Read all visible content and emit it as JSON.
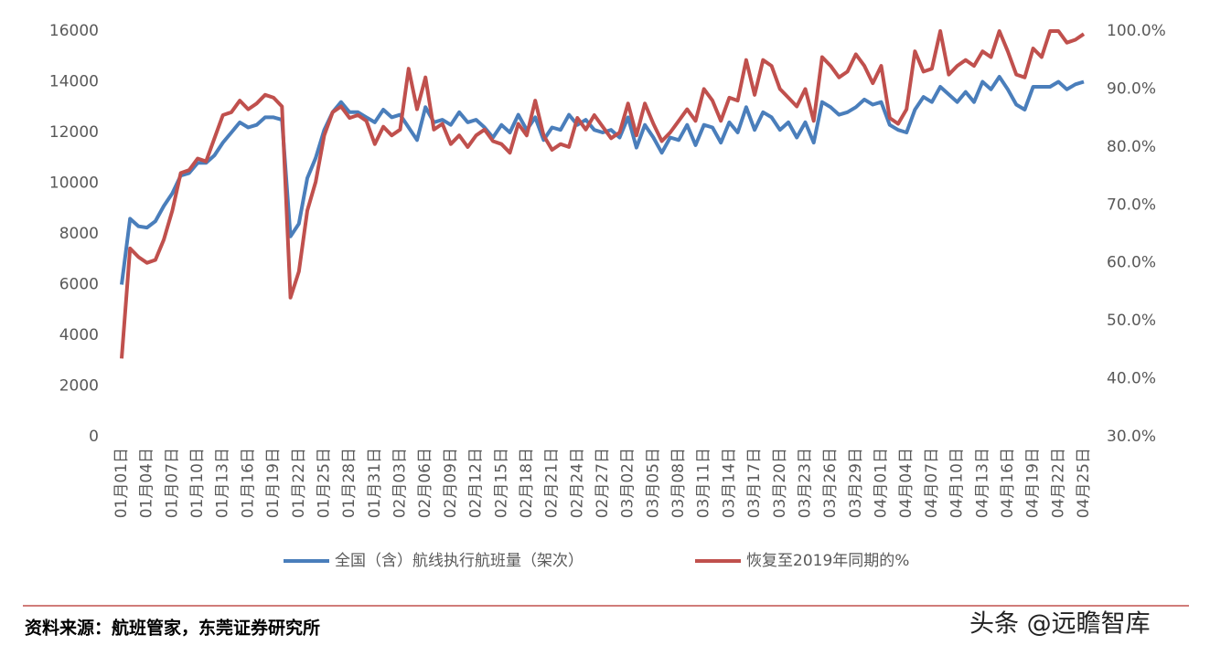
{
  "chart_data": {
    "type": "line",
    "categories": [
      "01月01日",
      null,
      null,
      "01月04日",
      null,
      null,
      "01月07日",
      null,
      null,
      "01月10日",
      null,
      null,
      "01月13日",
      null,
      null,
      "01月16日",
      null,
      null,
      "01月19日",
      null,
      null,
      "01月22日",
      null,
      null,
      "01月25日",
      null,
      null,
      "01月28日",
      null,
      null,
      "01月31日",
      null,
      null,
      "02月03日",
      null,
      null,
      "02月06日",
      null,
      null,
      "02月09日",
      null,
      null,
      "02月12日",
      null,
      null,
      "02月15日",
      null,
      null,
      "02月18日",
      null,
      null,
      "02月21日",
      null,
      null,
      "02月24日",
      null,
      null,
      "02月27日",
      null,
      null,
      "03月02日",
      null,
      null,
      "03月05日",
      null,
      null,
      "03月08日",
      null,
      null,
      "03月11日",
      null,
      null,
      "03月14日",
      null,
      null,
      "03月17日",
      null,
      null,
      "03月20日",
      null,
      null,
      "03月23日",
      null,
      null,
      "03月26日",
      null,
      null,
      "03月29日",
      null,
      null,
      "04月01日",
      null,
      null,
      "04月04日",
      null,
      null,
      "04月07日",
      null,
      null,
      "04月10日",
      null,
      null,
      "04月13日",
      null,
      null,
      "04月16日",
      null,
      null,
      "04月19日",
      null,
      null,
      "04月22日",
      null,
      null,
      "04月25日"
    ],
    "series": [
      {
        "name": "全国（含）航线执行航班量（架次）",
        "color": "#4a7ebb",
        "values": [
          6000,
          8600,
          8300,
          8250,
          8500,
          9100,
          9600,
          10300,
          10400,
          10800,
          10800,
          11100,
          11600,
          12000,
          12400,
          12200,
          12300,
          12600,
          12600,
          12500,
          7900,
          8400,
          10200,
          11000,
          12100,
          12800,
          13200,
          12800,
          12800,
          12600,
          12400,
          12900,
          12600,
          12700,
          12200,
          11700,
          13000,
          12400,
          12500,
          12300,
          12800,
          12400,
          12500,
          12200,
          11800,
          12300,
          12000,
          12700,
          12100,
          12600,
          11700,
          12200,
          12100,
          12700,
          12300,
          12500,
          12100,
          12000,
          12100,
          11800,
          12600,
          11400,
          12300,
          11800,
          11200,
          11800,
          11700,
          12300,
          11500,
          12300,
          12200,
          11600,
          12400,
          12000,
          13000,
          12100,
          12800,
          12600,
          12100,
          12400,
          11800,
          12400,
          11600,
          13200,
          13000,
          12700,
          12800,
          13000,
          13300,
          13100,
          13200,
          12300,
          12100,
          12000,
          12900,
          13400,
          13200,
          13800,
          13500,
          13200,
          13600,
          13200,
          14000,
          13700,
          14200,
          13700,
          13100,
          12900,
          13800,
          13800,
          13800,
          14000,
          13700,
          13900,
          14000
        ]
      },
      {
        "name": "恢复至2019年同期的%",
        "color": "#c0504d",
        "axis": "y2",
        "values": [
          43.5,
          62.5,
          61,
          60,
          60.5,
          64,
          69,
          75.5,
          76,
          78,
          77.5,
          81.5,
          85.5,
          86,
          88,
          86.5,
          87.5,
          89,
          88.5,
          87,
          54,
          58.5,
          69,
          74,
          82,
          86,
          87,
          85,
          85.5,
          84.5,
          80.5,
          83.5,
          82,
          83,
          93.5,
          86.5,
          92,
          83,
          84,
          80.5,
          82,
          80,
          82,
          83,
          81,
          80.5,
          79,
          84,
          82,
          88,
          82,
          79.5,
          80.5,
          80,
          85,
          83,
          85.5,
          83.5,
          81.5,
          82.5,
          87.5,
          82,
          87.5,
          84,
          81,
          82.5,
          84.5,
          86.5,
          84.5,
          90,
          88,
          84.5,
          88.5,
          88,
          95,
          89,
          95,
          94,
          90,
          88.5,
          87,
          90,
          84.5,
          95.5,
          94,
          92,
          93,
          96,
          94,
          91,
          94,
          85,
          84,
          86.5,
          96.5,
          93,
          93.5,
          100,
          92.5,
          94,
          95,
          94,
          96.5,
          95.5,
          100,
          96.5,
          92.5,
          92,
          97,
          95.5,
          100,
          100,
          98,
          98.5,
          99.5
        ]
      }
    ],
    "ylim": [
      0,
      16000
    ],
    "yticks": [
      0,
      2000,
      4000,
      6000,
      8000,
      10000,
      12000,
      14000,
      16000
    ],
    "y2lim": [
      30,
      100
    ],
    "y2ticks": [
      {
        "value": 30,
        "label": "30.0%"
      },
      {
        "value": 40,
        "label": "40.0%"
      },
      {
        "value": 50,
        "label": "50.0%"
      },
      {
        "value": 60,
        "label": "60.0%"
      },
      {
        "value": 70,
        "label": "70.0%"
      },
      {
        "value": 80,
        "label": "80.0%"
      },
      {
        "value": 90,
        "label": "90.0%"
      },
      {
        "value": 100,
        "label": "100.0%"
      }
    ],
    "grid": false,
    "legend": "bottom"
  },
  "source": "资料来源：航班管家，东莞证券研究所",
  "watermark": "头条 @远瞻智库"
}
